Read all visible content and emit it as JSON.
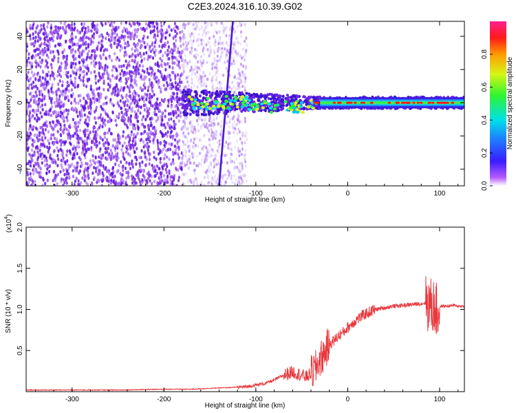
{
  "title": "C2E3.2024.316.10.39.G02",
  "colors": {
    "snr_line": "#e8383d",
    "frame": "#000000",
    "scatter_purple": "#7a2de0"
  },
  "chart_data": [
    {
      "type": "heatmap",
      "xlabel": "Height of straight line (km)",
      "ylabel": "Frequency (Hz)",
      "xlim": [
        -350,
        127
      ],
      "ylim": [
        -50,
        49
      ],
      "xticks": [
        -300,
        -200,
        -100,
        0,
        100
      ],
      "xtick_labels": [
        "-300",
        "-200",
        "-100",
        "0",
        "100"
      ],
      "yticks": [
        -40,
        -20,
        0,
        20,
        40
      ],
      "ytick_labels": [
        "-40",
        "-20",
        "0",
        "20",
        "40"
      ],
      "colorbar": {
        "label": "Normalized spectral amplitude",
        "range": [
          0,
          1
        ],
        "ticks": [
          0.0,
          0.2,
          0.4,
          0.6,
          0.8
        ],
        "tick_labels": [
          "0.0",
          "0.2",
          "0.4",
          "0.6",
          "0.8"
        ],
        "colormap": "rainbow (magenta-blue-cyan-green-yellow-red-pink)"
      },
      "features": {
        "noise_region_x": [
          -350,
          -180
        ],
        "transition_region_x": [
          -180,
          -110
        ],
        "signal_band_center_hz": 0,
        "signal_band_start_x": -180,
        "signal_band_end_x": 127,
        "vertical_streak_x": [
          -140,
          -125
        ]
      }
    },
    {
      "type": "line",
      "xlabel": "Height of straight line (km)",
      "ylabel": "SNR (10 * v/v)",
      "yscale_label": "(x10",
      "yscale_exponent": "4",
      "xlim": [
        -350,
        127
      ],
      "ylim": [
        0,
        2.0
      ],
      "xticks": [
        -300,
        -200,
        -100,
        0,
        100
      ],
      "xtick_labels": [
        "-300",
        "-200",
        "-100",
        "0",
        "100"
      ],
      "yticks": [
        0.5,
        1.0,
        1.5,
        2.0
      ],
      "ytick_labels": [
        "0.5",
        "1.0",
        "1.5",
        "2.0"
      ],
      "series": [
        {
          "x": [
            -350,
            -300,
            -250,
            -200,
            -170,
            -150,
            -130,
            -110,
            -100,
            -90,
            -80,
            -70,
            -60,
            -55,
            -50,
            -45,
            -40,
            -35,
            -30,
            -28,
            -25,
            -20,
            -15,
            -10,
            -5,
            0,
            10,
            20,
            30,
            40,
            50,
            60,
            70,
            80,
            85,
            90,
            95,
            98,
            100,
            102,
            105,
            110,
            115,
            120,
            127
          ],
          "y": [
            0.02,
            0.02,
            0.02,
            0.03,
            0.03,
            0.04,
            0.05,
            0.06,
            0.08,
            0.1,
            0.14,
            0.2,
            0.24,
            0.22,
            0.2,
            0.18,
            0.22,
            0.28,
            0.4,
            0.42,
            0.48,
            0.58,
            0.62,
            0.68,
            0.72,
            0.78,
            0.88,
            0.95,
            1.0,
            1.02,
            1.04,
            1.05,
            1.06,
            1.07,
            1.08,
            1.05,
            1.02,
            0.95,
            1.02,
            1.04,
            1.04,
            1.04,
            1.05,
            1.04,
            1.04
          ]
        }
      ]
    }
  ]
}
